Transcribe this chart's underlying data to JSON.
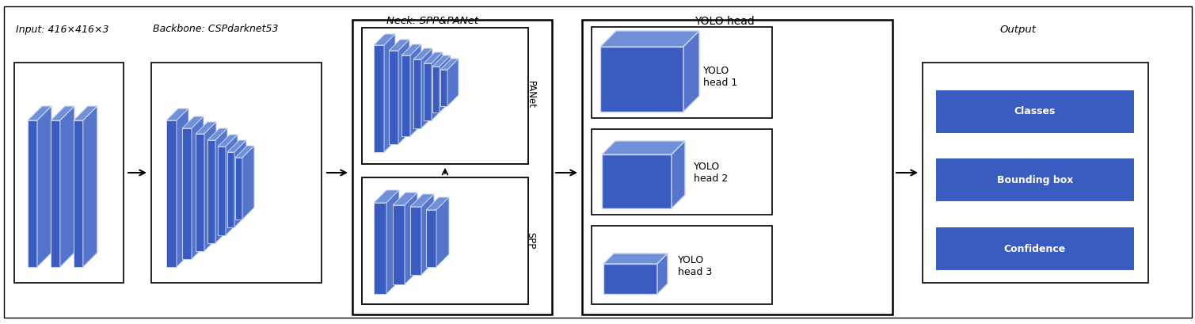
{
  "fig_width": 15.09,
  "fig_height": 4.09,
  "dpi": 100,
  "bg_color": "#ffffff",
  "blue_front": "#3a5bbf",
  "blue_top": "#7090d8",
  "blue_side": "#5575cc",
  "blue_edge": "#c8d4f0",
  "output_blue": "#3a5bbf",
  "input_label": "Input: 416×416×3",
  "backbone_label": "Backbone: CSPdarknet53",
  "neck_label": "Neck: SPP&PANet",
  "yolo_head_label": "YOLO head",
  "output_label": "Output",
  "panet_label": "PANet",
  "spp_label": "SPP",
  "yolo_labels": [
    "YOLO\nhead 1",
    "YOLO\nhead 2",
    "YOLO\nhead 3"
  ],
  "output_items": [
    "Classes",
    "Bounding box",
    "Confidence"
  ],
  "xlim": [
    0,
    15.09
  ],
  "ylim": [
    0,
    4.09
  ]
}
